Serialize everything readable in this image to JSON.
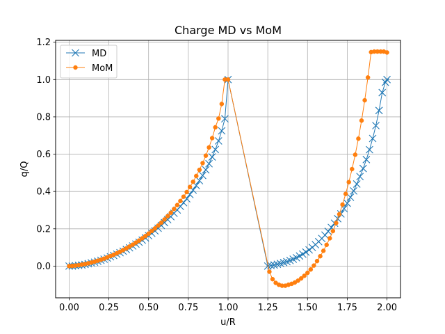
{
  "chart_data": {
    "type": "line",
    "title": "Charge MD vs MoM",
    "xlabel": "u/R",
    "ylabel": "q/Q",
    "xlim": [
      -0.085,
      2.085
    ],
    "ylim": [
      -0.17,
      1.21
    ],
    "xticks": [
      0.0,
      0.25,
      0.5,
      0.75,
      1.0,
      1.25,
      1.5,
      1.75,
      2.0
    ],
    "xtick_labels": [
      "0.00",
      "0.25",
      "0.50",
      "0.75",
      "1.00",
      "1.25",
      "1.50",
      "1.75",
      "2.00"
    ],
    "yticks": [
      0.0,
      0.2,
      0.4,
      0.6,
      0.8,
      1.0,
      1.2
    ],
    "ytick_labels": [
      "0.0",
      "0.2",
      "0.4",
      "0.6",
      "0.8",
      "1.0",
      "1.2"
    ],
    "grid": true,
    "legend_position": "top-left",
    "series": [
      {
        "name": "MD",
        "color": "#1f77b4",
        "marker": "x",
        "x": [
          0.0,
          0.02,
          0.04,
          0.06,
          0.08,
          0.1,
          0.12,
          0.14,
          0.16,
          0.18,
          0.2,
          0.22,
          0.24,
          0.26,
          0.28,
          0.3,
          0.32,
          0.34,
          0.36,
          0.38,
          0.4,
          0.42,
          0.44,
          0.46,
          0.48,
          0.5,
          0.52,
          0.54,
          0.56,
          0.58,
          0.6,
          0.62,
          0.64,
          0.66,
          0.68,
          0.7,
          0.72,
          0.74,
          0.76,
          0.78,
          0.8,
          0.82,
          0.84,
          0.86,
          0.88,
          0.9,
          0.92,
          0.94,
          0.96,
          0.98,
          1.0,
          1.25,
          1.27,
          1.29,
          1.31,
          1.33,
          1.35,
          1.37,
          1.39,
          1.41,
          1.43,
          1.45,
          1.47,
          1.49,
          1.51,
          1.53,
          1.55,
          1.57,
          1.59,
          1.61,
          1.63,
          1.65,
          1.67,
          1.69,
          1.71,
          1.73,
          1.75,
          1.77,
          1.79,
          1.81,
          1.83,
          1.85,
          1.87,
          1.89,
          1.91,
          1.93,
          1.95,
          1.97,
          1.99,
          2.0
        ],
        "y": [
          0.0,
          0.0,
          0.002,
          0.004,
          0.006,
          0.009,
          0.013,
          0.017,
          0.021,
          0.026,
          0.031,
          0.037,
          0.043,
          0.05,
          0.057,
          0.064,
          0.072,
          0.08,
          0.089,
          0.098,
          0.108,
          0.118,
          0.128,
          0.139,
          0.151,
          0.163,
          0.176,
          0.189,
          0.203,
          0.218,
          0.233,
          0.249,
          0.265,
          0.283,
          0.301,
          0.32,
          0.34,
          0.361,
          0.384,
          0.407,
          0.432,
          0.458,
          0.486,
          0.516,
          0.549,
          0.585,
          0.625,
          0.671,
          0.725,
          0.79,
          1.0,
          0.0,
          0.003,
          0.006,
          0.01,
          0.014,
          0.019,
          0.024,
          0.03,
          0.037,
          0.045,
          0.054,
          0.064,
          0.075,
          0.087,
          0.1,
          0.115,
          0.131,
          0.148,
          0.166,
          0.186,
          0.207,
          0.23,
          0.254,
          0.28,
          0.308,
          0.337,
          0.369,
          0.403,
          0.44,
          0.48,
          0.523,
          0.571,
          0.624,
          0.684,
          0.753,
          0.834,
          0.93,
          0.985,
          1.0
        ]
      },
      {
        "name": "MoM",
        "color": "#ff7f0e",
        "marker": "o",
        "x": [
          0.0,
          0.02,
          0.04,
          0.06,
          0.08,
          0.1,
          0.12,
          0.14,
          0.16,
          0.18,
          0.2,
          0.22,
          0.24,
          0.26,
          0.28,
          0.3,
          0.32,
          0.34,
          0.36,
          0.38,
          0.4,
          0.42,
          0.44,
          0.46,
          0.48,
          0.5,
          0.52,
          0.54,
          0.56,
          0.58,
          0.6,
          0.62,
          0.64,
          0.66,
          0.68,
          0.7,
          0.72,
          0.74,
          0.76,
          0.78,
          0.8,
          0.82,
          0.84,
          0.86,
          0.88,
          0.9,
          0.92,
          0.94,
          0.96,
          0.98,
          1.0,
          1.26,
          1.28,
          1.3,
          1.32,
          1.34,
          1.36,
          1.38,
          1.4,
          1.42,
          1.44,
          1.46,
          1.48,
          1.5,
          1.52,
          1.54,
          1.56,
          1.58,
          1.6,
          1.62,
          1.64,
          1.66,
          1.68,
          1.7,
          1.72,
          1.74,
          1.76,
          1.78,
          1.8,
          1.82,
          1.84,
          1.86,
          1.88,
          1.9,
          1.92,
          1.94,
          1.96,
          1.98,
          2.0
        ],
        "y": [
          0.0,
          0.001,
          0.003,
          0.005,
          0.008,
          0.011,
          0.015,
          0.019,
          0.024,
          0.029,
          0.034,
          0.04,
          0.047,
          0.054,
          0.061,
          0.069,
          0.077,
          0.086,
          0.095,
          0.105,
          0.115,
          0.126,
          0.137,
          0.149,
          0.161,
          0.174,
          0.188,
          0.202,
          0.217,
          0.233,
          0.25,
          0.268,
          0.286,
          0.306,
          0.327,
          0.349,
          0.372,
          0.397,
          0.424,
          0.452,
          0.483,
          0.516,
          0.552,
          0.592,
          0.636,
          0.686,
          0.744,
          0.791,
          0.869,
          1.0,
          1.0,
          -0.03,
          -0.07,
          -0.09,
          -0.1,
          -0.105,
          -0.105,
          -0.1,
          -0.095,
          -0.088,
          -0.078,
          -0.066,
          -0.052,
          -0.036,
          -0.018,
          0.003,
          0.027,
          0.053,
          0.082,
          0.114,
          0.149,
          0.188,
          0.231,
          0.278,
          0.33,
          0.387,
          0.45,
          0.52,
          0.597,
          0.683,
          0.78,
          0.889,
          1.011,
          1.147,
          1.15,
          1.15,
          1.15,
          1.15,
          1.145
        ]
      }
    ]
  }
}
